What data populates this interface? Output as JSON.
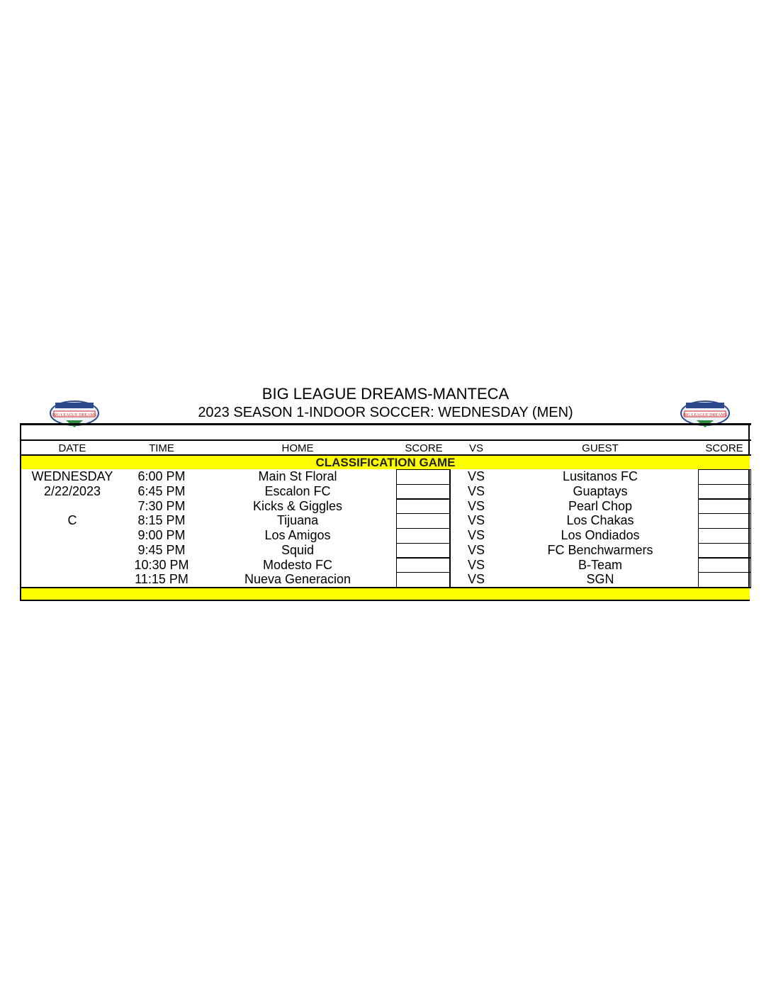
{
  "title": "BIG LEAGUE DREAMS-MANTECA",
  "subtitle": "2023 SEASON 1-INDOOR SOCCER: WEDNESDAY (MEN)",
  "logo_text": "BIG LEAGUE DREAMS",
  "headers": {
    "date": "DATE",
    "time": "TIME",
    "home": "HOME",
    "score1": "SCORE",
    "vs": "VS",
    "guest": "GUEST",
    "score2": "SCORE"
  },
  "section": "CLASSIFICATION GAME",
  "date_col": [
    "WEDNESDAY",
    "2/22/2023",
    "",
    "C"
  ],
  "games": [
    {
      "time": "6:00 PM",
      "home": "Main St Floral",
      "vs": "VS",
      "guest": "Lusitanos FC"
    },
    {
      "time": "6:45 PM",
      "home": "Escalon FC",
      "vs": "VS",
      "guest": "Guaptays"
    },
    {
      "time": "7:30 PM",
      "home": "Kicks & Giggles",
      "vs": "VS",
      "guest": "Pearl Chop"
    },
    {
      "time": "8:15 PM",
      "home": "Tijuana",
      "vs": "VS",
      "guest": "Los Chakas"
    },
    {
      "time": "9:00 PM",
      "home": "Los Amigos",
      "vs": "VS",
      "guest": "Los Ondiados"
    },
    {
      "time": "9:45 PM",
      "home": "Squid",
      "vs": "VS",
      "guest": "FC Benchwarmers"
    },
    {
      "time": "10:30 PM",
      "home": "Modesto FC",
      "vs": "VS",
      "guest": "B-Team"
    },
    {
      "time": "11:15 PM",
      "home": "Nueva Generacion",
      "vs": "VS",
      "guest": "SGN"
    }
  ],
  "colors": {
    "highlight": "#ffff00"
  }
}
